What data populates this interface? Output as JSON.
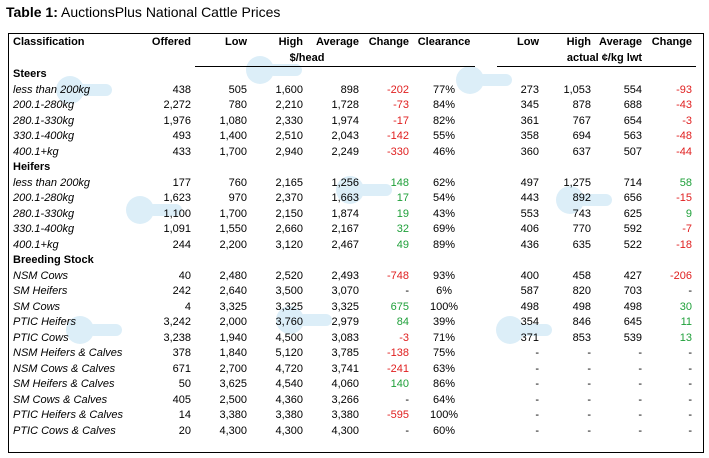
{
  "caption": {
    "bold": "Table 1:",
    "text": " AuctionsPlus National Cattle Prices"
  },
  "header": {
    "classification": "Classification",
    "offered": "Offered",
    "low": "Low",
    "high": "High",
    "average": "Average",
    "change": "Change",
    "clearance": "Clearance",
    "low2": "Low",
    "high2": "High",
    "average2": "Average",
    "change2": "Change",
    "unit_head": "$/head",
    "unit_kg": "actual ¢/kg lwt"
  },
  "sections": [
    {
      "title": "Steers",
      "rows": [
        [
          "less than 200kg",
          "438",
          "505",
          "1,600",
          "898",
          "-202",
          "77%",
          "273",
          "1,053",
          "554",
          "-93"
        ],
        [
          "200.1-280kg",
          "2,272",
          "780",
          "2,210",
          "1,728",
          "-73",
          "84%",
          "345",
          "878",
          "688",
          "-43"
        ],
        [
          "280.1-330kg",
          "1,976",
          "1,080",
          "2,330",
          "1,974",
          "-17",
          "82%",
          "361",
          "767",
          "654",
          "-3"
        ],
        [
          "330.1-400kg",
          "493",
          "1,400",
          "2,510",
          "2,043",
          "-142",
          "55%",
          "358",
          "694",
          "563",
          "-48"
        ],
        [
          "400.1+kg",
          "433",
          "1,700",
          "2,940",
          "2,249",
          "-330",
          "46%",
          "360",
          "637",
          "507",
          "-44"
        ]
      ]
    },
    {
      "title": "Heifers",
      "rows": [
        [
          "less than 200kg",
          "177",
          "760",
          "2,165",
          "1,256",
          "148",
          "62%",
          "497",
          "1,275",
          "714",
          "58"
        ],
        [
          "200.1-280kg",
          "1,623",
          "970",
          "2,370",
          "1,663",
          "17",
          "54%",
          "443",
          "892",
          "656",
          "-15"
        ],
        [
          "280.1-330kg",
          "1,100",
          "1,700",
          "2,150",
          "1,874",
          "19",
          "43%",
          "553",
          "743",
          "625",
          "9"
        ],
        [
          "330.1-400kg",
          "1,091",
          "1,550",
          "2,660",
          "2,167",
          "32",
          "69%",
          "406",
          "770",
          "592",
          "-7"
        ],
        [
          "400.1+kg",
          "244",
          "2,200",
          "3,120",
          "2,467",
          "49",
          "89%",
          "436",
          "635",
          "522",
          "-18"
        ]
      ]
    },
    {
      "title": "Breeding Stock",
      "rows": [
        [
          "NSM Cows",
          "40",
          "2,480",
          "2,520",
          "2,493",
          "-748",
          "93%",
          "400",
          "458",
          "427",
          "-206"
        ],
        [
          "SM Heifers",
          "242",
          "2,640",
          "3,500",
          "3,070",
          "-",
          "6%",
          "587",
          "820",
          "703",
          "-"
        ],
        [
          "SM Cows",
          "4",
          "3,325",
          "3,325",
          "3,325",
          "675",
          "100%",
          "498",
          "498",
          "498",
          "30"
        ],
        [
          "PTIC Heifers",
          "3,242",
          "2,000",
          "3,760",
          "2,979",
          "84",
          "39%",
          "354",
          "846",
          "645",
          "11"
        ],
        [
          "PTIC Cows",
          "3,238",
          "1,940",
          "4,500",
          "3,083",
          "-3",
          "71%",
          "371",
          "853",
          "539",
          "13"
        ],
        [
          "NSM Heifers & Calves",
          "378",
          "1,840",
          "5,120",
          "3,785",
          "-138",
          "75%",
          "-",
          "-",
          "-",
          "-"
        ],
        [
          "NSM Cows & Calves",
          "671",
          "2,700",
          "4,720",
          "3,741",
          "-241",
          "63%",
          "-",
          "-",
          "-",
          "-"
        ],
        [
          "SM Heifers & Calves",
          "50",
          "3,625",
          "4,540",
          "4,060",
          "140",
          "86%",
          "-",
          "-",
          "-",
          "-"
        ],
        [
          "SM Cows & Calves",
          "405",
          "2,500",
          "4,360",
          "3,266",
          "-",
          "64%",
          "-",
          "-",
          "-",
          "-"
        ],
        [
          "PTIC Heifers & Calves",
          "14",
          "3,380",
          "3,380",
          "3,380",
          "-595",
          "100%",
          "-",
          "-",
          "-",
          "-"
        ],
        [
          "PTIC Cows & Calves",
          "20",
          "4,300",
          "4,300",
          "4,300",
          "-",
          "60%",
          "-",
          "-",
          "-",
          "-"
        ]
      ]
    }
  ],
  "colors": {
    "negative": "#e02020",
    "positive": "#1fa03a",
    "watermark": "#bfe0f2"
  },
  "watermark_icon": "auctionsplus-logo-icon"
}
